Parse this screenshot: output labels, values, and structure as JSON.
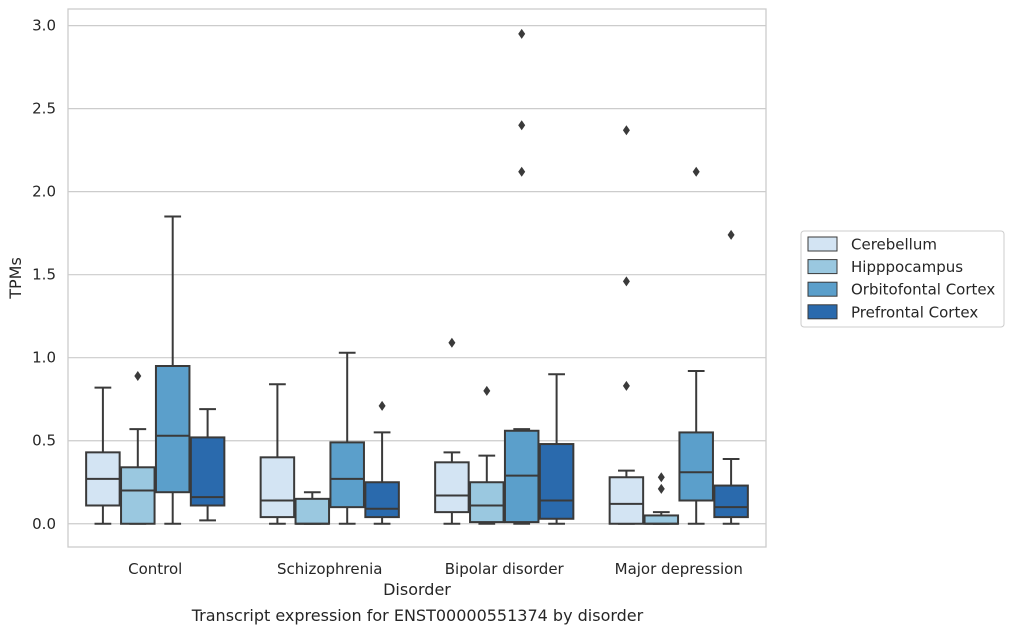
{
  "caption": "Transcript expression for ENST00000551374 by disorder",
  "chart_data": {
    "type": "box",
    "xlabel": "Disorder",
    "ylabel": "TPMs",
    "ylim": [
      -0.14,
      3.1
    ],
    "y_ticks": [
      "0.0",
      "0.5",
      "1.0",
      "1.5",
      "2.0",
      "2.5",
      "3.0"
    ],
    "grid": true,
    "legend_position": "right",
    "categories": [
      "Control",
      "Schizophrenia",
      "Bipolar disorder",
      "Major depression"
    ],
    "series": [
      {
        "name": "Cerebellum",
        "color": "#d3e4f3",
        "boxes": [
          {
            "min": 0.0,
            "q1": 0.11,
            "median": 0.27,
            "q3": 0.43,
            "max": 0.82,
            "outliers": []
          },
          {
            "min": 0.0,
            "q1": 0.04,
            "median": 0.14,
            "q3": 0.4,
            "max": 0.84,
            "outliers": []
          },
          {
            "min": 0.0,
            "q1": 0.07,
            "median": 0.17,
            "q3": 0.37,
            "max": 0.43,
            "outliers": [
              1.09
            ]
          },
          {
            "min": 0.0,
            "q1": 0.0,
            "median": 0.12,
            "q3": 0.28,
            "max": 0.32,
            "outliers": [
              0.83,
              1.46,
              2.37
            ]
          }
        ]
      },
      {
        "name": "Hipppocampus",
        "color": "#9ac8e0",
        "boxes": [
          {
            "min": 0.0,
            "q1": 0.0,
            "median": 0.2,
            "q3": 0.34,
            "max": 0.57,
            "outliers": [
              0.89
            ]
          },
          {
            "min": 0.0,
            "q1": 0.0,
            "median": 0.0,
            "q3": 0.15,
            "max": 0.19,
            "outliers": []
          },
          {
            "min": 0.0,
            "q1": 0.01,
            "median": 0.11,
            "q3": 0.25,
            "max": 0.41,
            "outliers": [
              0.8
            ]
          },
          {
            "min": 0.0,
            "q1": 0.0,
            "median": 0.0,
            "q3": 0.05,
            "max": 0.07,
            "outliers": [
              0.21,
              0.28
            ]
          }
        ]
      },
      {
        "name": "Orbitofontal Cortex",
        "color": "#5b9fcb",
        "boxes": [
          {
            "min": 0.0,
            "q1": 0.19,
            "median": 0.53,
            "q3": 0.95,
            "max": 1.85,
            "outliers": []
          },
          {
            "min": 0.0,
            "q1": 0.1,
            "median": 0.27,
            "q3": 0.49,
            "max": 1.03,
            "outliers": []
          },
          {
            "min": 0.0,
            "q1": 0.01,
            "median": 0.29,
            "q3": 0.56,
            "max": 0.57,
            "outliers": [
              2.12,
              2.4,
              2.95
            ]
          },
          {
            "min": 0.0,
            "q1": 0.14,
            "median": 0.31,
            "q3": 0.55,
            "max": 0.92,
            "outliers": [
              2.12
            ]
          }
        ]
      },
      {
        "name": "Prefrontal Cortex",
        "color": "#2a6aad",
        "boxes": [
          {
            "min": 0.02,
            "q1": 0.11,
            "median": 0.16,
            "q3": 0.52,
            "max": 0.69,
            "outliers": []
          },
          {
            "min": 0.0,
            "q1": 0.04,
            "median": 0.09,
            "q3": 0.25,
            "max": 0.55,
            "outliers": [
              0.71
            ]
          },
          {
            "min": 0.0,
            "q1": 0.03,
            "median": 0.14,
            "q3": 0.48,
            "max": 0.9,
            "outliers": []
          },
          {
            "min": 0.0,
            "q1": 0.04,
            "median": 0.1,
            "q3": 0.23,
            "max": 0.39,
            "outliers": [
              1.74
            ]
          }
        ]
      }
    ]
  }
}
